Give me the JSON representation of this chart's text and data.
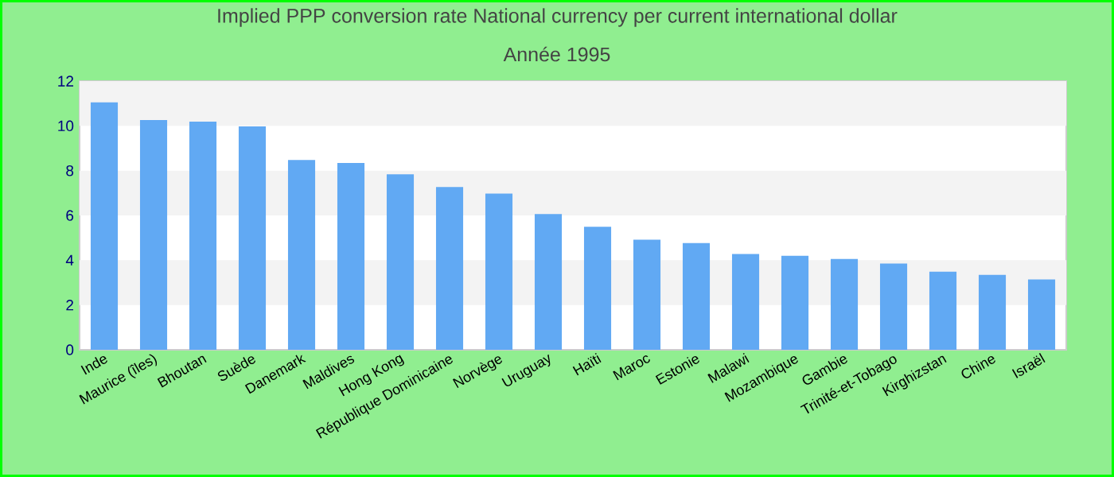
{
  "chart_data": {
    "type": "bar",
    "title": "Implied PPP conversion rate  National currency per current international dollar",
    "subtitle": "Année 1995",
    "categories": [
      "Inde",
      "Maurice (îles)",
      "Bhoutan",
      "Suède",
      "Danemark",
      "Maldives",
      "Hong Kong",
      "République Dominicaine",
      "Norvège",
      "Uruguay",
      "Haïti",
      "Maroc",
      "Estonie",
      "Malawi",
      "Mozambique",
      "Gambie",
      "Trinité-et-Tobago",
      "Kirghizstan",
      "Chine",
      "Israël"
    ],
    "values": [
      11.05,
      10.26,
      10.19,
      9.98,
      8.48,
      8.34,
      7.84,
      7.27,
      6.98,
      6.06,
      5.49,
      4.92,
      4.77,
      4.28,
      4.2,
      4.06,
      3.85,
      3.49,
      3.35,
      3.14
    ],
    "color": "#61a9f3",
    "ylim": [
      0,
      12
    ],
    "yticks": [
      0,
      2,
      4,
      6,
      8,
      10,
      12
    ]
  }
}
